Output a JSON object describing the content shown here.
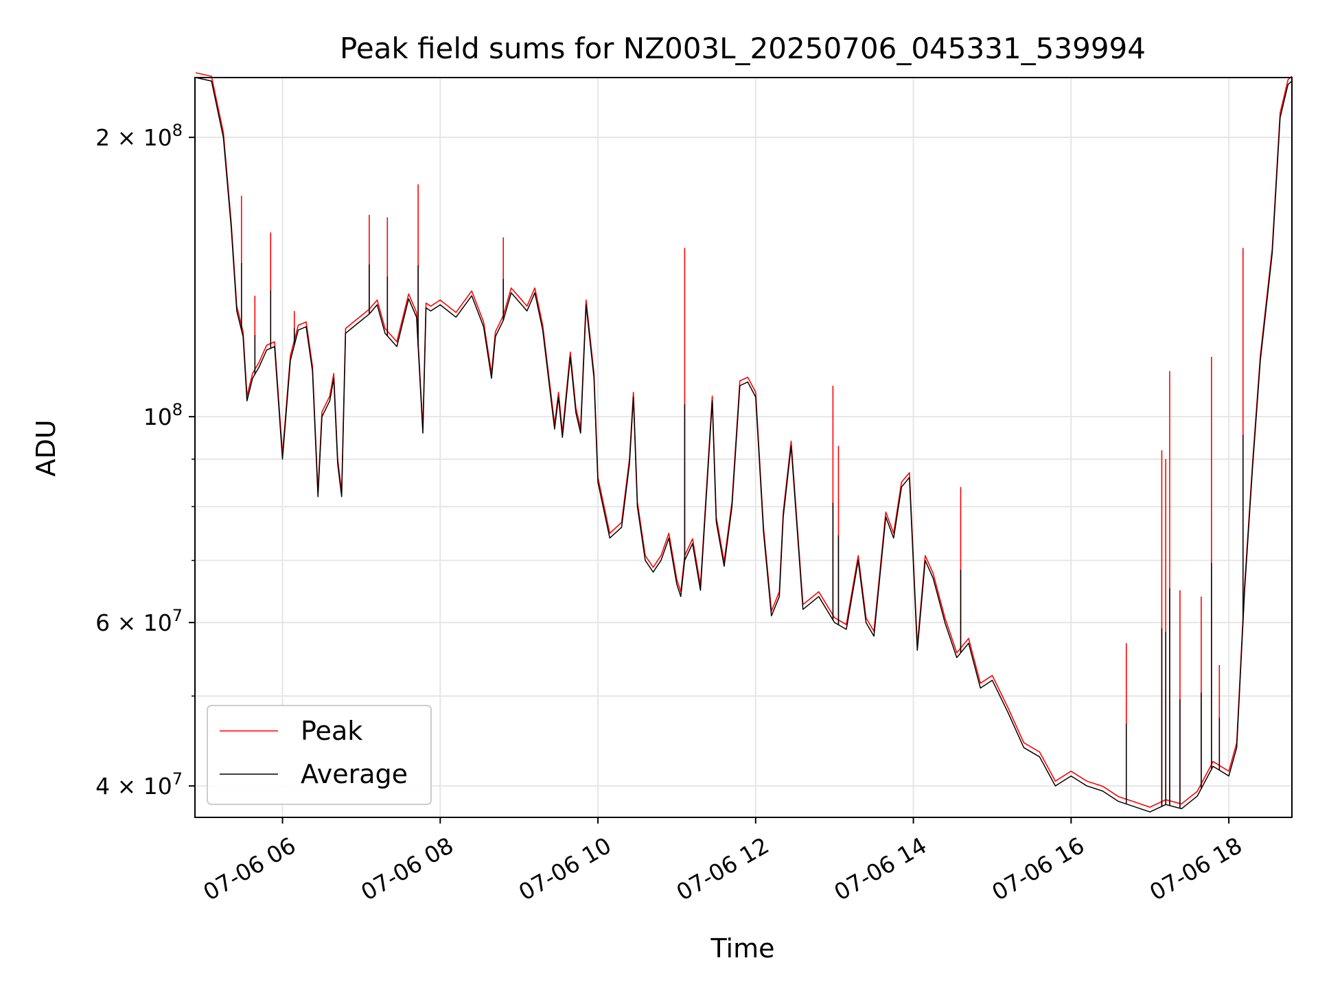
{
  "chart_data": {
    "type": "line",
    "title": "Peak field sums for NZ003L_20250706_045331_539994",
    "xlabel": "Time",
    "ylabel": "ADU",
    "x_unit": "hours (2025-07-06, time of day)",
    "xlim": [
      4.89,
      18.8
    ],
    "ylim": [
      37000000,
      232000000
    ],
    "yscale": "log",
    "grid": true,
    "legend": {
      "position": "lower-left",
      "entries": [
        "Peak",
        "Average"
      ]
    },
    "x_ticks": [
      {
        "value": 6,
        "label": "07-06 06"
      },
      {
        "value": 8,
        "label": "07-06 08"
      },
      {
        "value": 10,
        "label": "07-06 10"
      },
      {
        "value": 12,
        "label": "07-06 12"
      },
      {
        "value": 14,
        "label": "07-06 14"
      },
      {
        "value": 16,
        "label": "07-06 16"
      },
      {
        "value": 18,
        "label": "07-06 18"
      }
    ],
    "y_major_ticks": [
      {
        "value": 40000000,
        "mantissa": "4",
        "exponent": "7"
      },
      {
        "value": 60000000,
        "mantissa": "6",
        "exponent": "7"
      },
      {
        "value": 100000000,
        "mantissa": "",
        "exponent": "8"
      },
      {
        "value": 200000000,
        "mantissa": "2",
        "exponent": "8"
      }
    ],
    "y_minor_ticks": [
      50000000,
      70000000,
      80000000,
      90000000
    ],
    "series": [
      {
        "name": "Average",
        "color": "#000000",
        "x": [
          4.9,
          5.1,
          5.25,
          5.35,
          5.42,
          5.5,
          5.55,
          5.62,
          5.7,
          5.8,
          5.9,
          6.0,
          6.1,
          6.2,
          6.3,
          6.38,
          6.45,
          6.5,
          6.6,
          6.65,
          6.7,
          6.75,
          6.8,
          6.95,
          7.1,
          7.2,
          7.3,
          7.45,
          7.6,
          7.7,
          7.78,
          7.82,
          7.88,
          8.0,
          8.2,
          8.4,
          8.55,
          8.65,
          8.7,
          8.8,
          8.9,
          9.0,
          9.1,
          9.2,
          9.3,
          9.45,
          9.5,
          9.55,
          9.65,
          9.72,
          9.78,
          9.85,
          9.95,
          10.0,
          10.15,
          10.3,
          10.4,
          10.45,
          10.5,
          10.6,
          10.7,
          10.8,
          10.9,
          11.0,
          11.05,
          11.1,
          11.2,
          11.3,
          11.45,
          11.5,
          11.6,
          11.7,
          11.8,
          11.9,
          12.0,
          12.1,
          12.2,
          12.3,
          12.35,
          12.45,
          12.6,
          12.8,
          13.0,
          13.15,
          13.3,
          13.4,
          13.5,
          13.65,
          13.75,
          13.85,
          13.95,
          14.05,
          14.15,
          14.25,
          14.4,
          14.55,
          14.7,
          14.85,
          15.0,
          15.2,
          15.4,
          15.6,
          15.8,
          16.0,
          16.2,
          16.4,
          16.6,
          16.8,
          17.0,
          17.2,
          17.4,
          17.6,
          17.8,
          18.0,
          18.1,
          18.2,
          18.3,
          18.4,
          18.55,
          18.65,
          18.75,
          18.8
        ],
        "y": [
          232000000,
          230000000,
          200000000,
          160000000,
          130000000,
          122000000,
          104000000,
          110000000,
          113000000,
          118000000,
          119000000,
          90000000,
          115000000,
          124000000,
          125000000,
          112000000,
          82000000,
          100000000,
          104000000,
          110000000,
          89000000,
          82000000,
          123000000,
          126000000,
          129000000,
          132000000,
          123000000,
          119000000,
          134000000,
          128000000,
          96000000,
          131000000,
          130000000,
          132000000,
          128000000,
          135000000,
          125000000,
          110000000,
          122000000,
          127000000,
          136000000,
          133000000,
          130000000,
          136000000,
          124000000,
          97000000,
          105000000,
          95000000,
          116000000,
          101000000,
          96000000,
          132000000,
          110000000,
          85000000,
          74000000,
          76000000,
          89000000,
          105000000,
          80000000,
          70000000,
          68000000,
          70000000,
          74000000,
          66000000,
          64000000,
          70000000,
          73000000,
          65000000,
          104000000,
          77000000,
          69000000,
          80000000,
          108000000,
          109000000,
          105000000,
          75000000,
          61000000,
          64000000,
          78000000,
          93000000,
          62000000,
          64000000,
          60000000,
          59000000,
          70000000,
          60000000,
          58000000,
          78000000,
          74000000,
          84000000,
          86000000,
          56000000,
          70000000,
          67000000,
          60000000,
          55000000,
          57000000,
          51000000,
          52000000,
          48000000,
          44000000,
          43000000,
          40000000,
          41000000,
          40000000,
          39500000,
          38500000,
          38000000,
          37500000,
          38200000,
          37800000,
          39000000,
          42000000,
          41000000,
          44000000,
          65000000,
          88000000,
          115000000,
          150000000,
          210000000,
          228000000,
          230000000
        ]
      },
      {
        "name": "Peak",
        "color": "#ff0000",
        "spikes": [
          {
            "x": 5.48,
            "y": 173000000
          },
          {
            "x": 5.65,
            "y": 135000000
          },
          {
            "x": 5.85,
            "y": 158000000
          },
          {
            "x": 6.15,
            "y": 130000000
          },
          {
            "x": 7.1,
            "y": 165000000
          },
          {
            "x": 7.33,
            "y": 164000000
          },
          {
            "x": 7.72,
            "y": 178000000
          },
          {
            "x": 8.8,
            "y": 156000000
          },
          {
            "x": 11.1,
            "y": 152000000
          },
          {
            "x": 12.98,
            "y": 108000000
          },
          {
            "x": 13.05,
            "y": 93000000
          },
          {
            "x": 14.6,
            "y": 84000000
          },
          {
            "x": 16.7,
            "y": 57000000
          },
          {
            "x": 17.15,
            "y": 92000000
          },
          {
            "x": 17.2,
            "y": 90000000
          },
          {
            "x": 17.25,
            "y": 112000000
          },
          {
            "x": 17.38,
            "y": 65000000
          },
          {
            "x": 17.65,
            "y": 64000000
          },
          {
            "x": 17.78,
            "y": 116000000
          },
          {
            "x": 17.88,
            "y": 54000000
          },
          {
            "x": 18.18,
            "y": 152000000
          }
        ]
      }
    ]
  }
}
